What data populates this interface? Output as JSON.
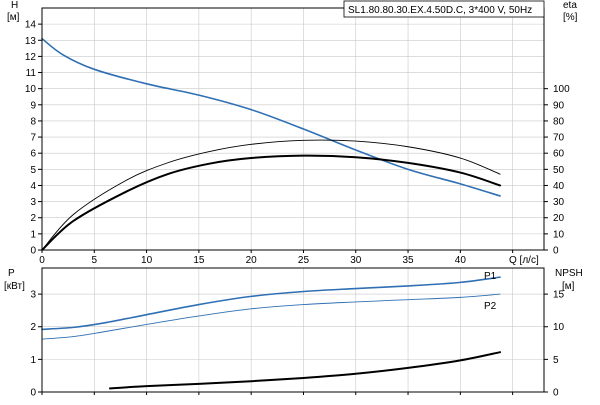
{
  "colors": {
    "blue": "#2f6fb3",
    "black": "#000000",
    "frame": "#000000",
    "grid": "#c9c9c9"
  },
  "chart_data": [
    {
      "id": "top",
      "type": "line",
      "title": "SL1.80.80.30.EX.4.50D.C, 3*400 V, 50Hz",
      "xlabel": "Q [л/с]",
      "ylabel_line1": "H",
      "ylabel_line2": "[м]",
      "y2label_line1": "eta",
      "y2label_line2": "[%]",
      "xlim": [
        0,
        48
      ],
      "ylim": [
        0,
        15
      ],
      "y2lim": [
        0,
        150
      ],
      "grid": true,
      "xticks": [
        0,
        5,
        10,
        15,
        20,
        25,
        30,
        35,
        40,
        45
      ],
      "xtick_labels": [
        "0",
        "5",
        "10",
        "15",
        "20",
        "25",
        "30",
        "35",
        "40"
      ],
      "yticks": [
        0,
        1,
        2,
        3,
        4,
        5,
        6,
        7,
        8,
        9,
        10,
        11,
        12,
        13,
        14
      ],
      "y2ticks": [
        0,
        10,
        20,
        30,
        40,
        50,
        60,
        70,
        80,
        90,
        100
      ],
      "series": [
        {
          "key": "H",
          "color": "blue",
          "width": 1.6,
          "points": [
            [
              0,
              13.1
            ],
            [
              2,
              12.1
            ],
            [
              5,
              11.2
            ],
            [
              10,
              10.3
            ],
            [
              15,
              9.6
            ],
            [
              20,
              8.7
            ],
            [
              25,
              7.5
            ],
            [
              30,
              6.2
            ],
            [
              35,
              5.0
            ],
            [
              40,
              4.1
            ],
            [
              43.8,
              3.35
            ]
          ]
        },
        {
          "key": "eta_thin",
          "axis": "y2",
          "color": "black",
          "width": 0.9,
          "points": [
            [
              0,
              0
            ],
            [
              3,
              22
            ],
            [
              8,
              43
            ],
            [
              12,
              54
            ],
            [
              16,
              61
            ],
            [
              20,
              65.5
            ],
            [
              25,
              68
            ],
            [
              30,
              67.5
            ],
            [
              35,
              64
            ],
            [
              40,
              57
            ],
            [
              43.8,
              47
            ]
          ]
        },
        {
          "key": "eta_thick",
          "axis": "y2",
          "color": "black",
          "width": 2.0,
          "points": [
            [
              0,
              0
            ],
            [
              3,
              18
            ],
            [
              8,
              36
            ],
            [
              12,
              47
            ],
            [
              16,
              53.5
            ],
            [
              20,
              57
            ],
            [
              25,
              58.5
            ],
            [
              30,
              57.5
            ],
            [
              35,
              54
            ],
            [
              40,
              48
            ],
            [
              43.8,
              40
            ]
          ]
        }
      ]
    },
    {
      "id": "bottom",
      "type": "line",
      "ylabel_line1": "P",
      "ylabel_line2": "[кВт]",
      "y2label_line1": "NPSH",
      "y2label_line2": "[м]",
      "xlim": [
        0,
        48
      ],
      "ylim": [
        0,
        3.8
      ],
      "y2lim": [
        0,
        19
      ],
      "grid": true,
      "xticks": [
        0,
        5,
        10,
        15,
        20,
        25,
        30,
        35,
        40,
        45
      ],
      "yticks": [
        0,
        1,
        2,
        3
      ],
      "y2ticks": [
        0,
        5,
        10,
        15
      ],
      "series": [
        {
          "key": "P1",
          "name": "P1",
          "color": "blue",
          "width": 1.6,
          "points": [
            [
              0,
              1.92
            ],
            [
              3,
              1.98
            ],
            [
              6,
              2.12
            ],
            [
              10,
              2.37
            ],
            [
              15,
              2.68
            ],
            [
              20,
              2.93
            ],
            [
              25,
              3.08
            ],
            [
              30,
              3.17
            ],
            [
              35,
              3.25
            ],
            [
              40,
              3.36
            ],
            [
              43.8,
              3.52
            ]
          ]
        },
        {
          "key": "P2",
          "name": "P2",
          "color": "blue",
          "width": 0.9,
          "points": [
            [
              0,
              1.62
            ],
            [
              3,
              1.7
            ],
            [
              6,
              1.85
            ],
            [
              10,
              2.07
            ],
            [
              15,
              2.33
            ],
            [
              20,
              2.55
            ],
            [
              25,
              2.68
            ],
            [
              30,
              2.76
            ],
            [
              35,
              2.83
            ],
            [
              40,
              2.9
            ],
            [
              43.8,
              3.0
            ]
          ]
        },
        {
          "key": "NPSH",
          "axis": "y2",
          "color": "black",
          "width": 2.0,
          "points": [
            [
              6.5,
              0.55
            ],
            [
              10,
              0.9
            ],
            [
              15,
              1.25
            ],
            [
              20,
              1.65
            ],
            [
              25,
              2.15
            ],
            [
              30,
              2.8
            ],
            [
              35,
              3.7
            ],
            [
              40,
              4.85
            ],
            [
              43.8,
              6.1
            ]
          ]
        }
      ]
    }
  ]
}
